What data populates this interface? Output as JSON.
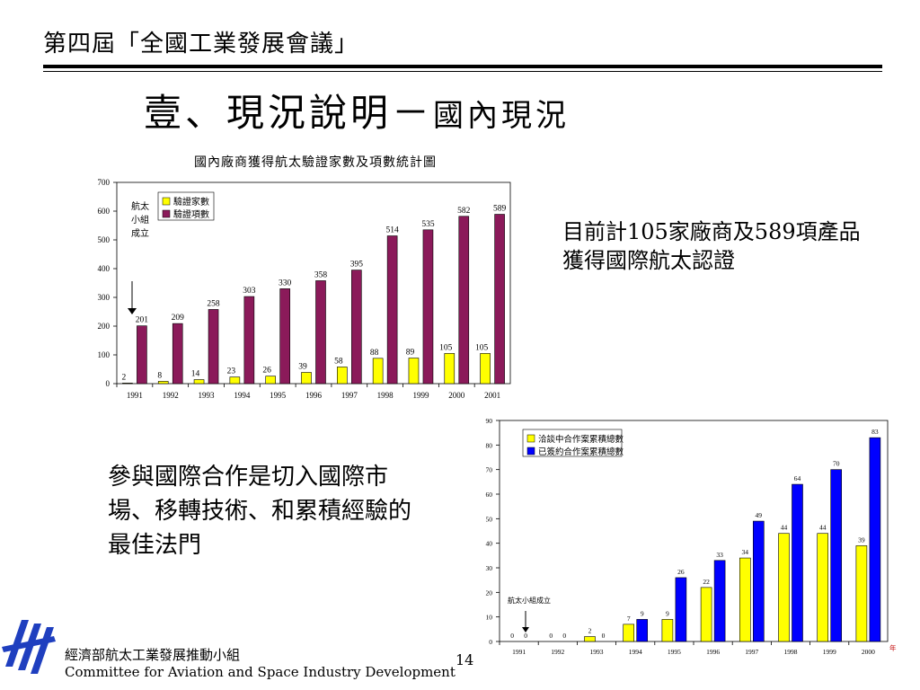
{
  "header": {
    "text": "第四屆「全國工業發展會議」"
  },
  "title": {
    "main": "壹、現況說明－",
    "sub": "國內現況"
  },
  "chart1_title": "國內廠商獲得航太驗證家數及項數統計圖",
  "note1": "目前計105家廠商及589項產品獲得國際航太認證",
  "note2": "參與國際合作是切入國際市場、移轉技術、和累積經驗的最佳法門",
  "footer": {
    "cn": "經濟部航太工業發展推動小組",
    "en": "Committee for Aviation and Space Industry Development",
    "page": "14"
  },
  "logo": {
    "icon": "casid-logo-icon"
  },
  "chart_data": [
    {
      "type": "bar",
      "title": "國內廠商獲得航太驗證家數及項數統計圖",
      "categories": [
        "1991",
        "1992",
        "1993",
        "1994",
        "1995",
        "1996",
        "1997",
        "1998",
        "1999",
        "2000",
        "2001"
      ],
      "series": [
        {
          "name": "驗證家數",
          "color": "#ffff00",
          "values": [
            2,
            8,
            14,
            23,
            26,
            39,
            58,
            88,
            89,
            105,
            105
          ]
        },
        {
          "name": "驗證項數",
          "color": "#8b1a5a",
          "values": [
            201,
            209,
            258,
            303,
            330,
            358,
            395,
            514,
            535,
            582,
            589
          ]
        }
      ],
      "ylim": [
        0,
        700
      ],
      "yticks": [
        0,
        100,
        200,
        300,
        400,
        500,
        600,
        700
      ],
      "legend": "top-left",
      "annotation": {
        "text_lines": [
          "航太",
          "小組",
          "成立"
        ],
        "category": "1991"
      }
    },
    {
      "type": "bar",
      "title": "",
      "categories": [
        "1991",
        "1992",
        "1993",
        "1994",
        "1995",
        "1996",
        "1997",
        "1998",
        "1999",
        "2000"
      ],
      "series": [
        {
          "name": "洽談中合作案累積總數",
          "color": "#ffff00",
          "values": [
            0,
            0,
            2,
            7,
            9,
            22,
            34,
            44,
            44,
            39
          ]
        },
        {
          "name": "已簽約合作案累積總數",
          "color": "#0000ff",
          "values": [
            0,
            0,
            0,
            9,
            26,
            33,
            49,
            64,
            70,
            83
          ]
        }
      ],
      "ylim": [
        0,
        90
      ],
      "yticks": [
        0,
        10,
        20,
        30,
        40,
        50,
        60,
        70,
        80,
        90
      ],
      "xunit": "年",
      "legend": "top-left",
      "annotation": {
        "text": "航太小組成立",
        "category": "1991"
      }
    }
  ]
}
